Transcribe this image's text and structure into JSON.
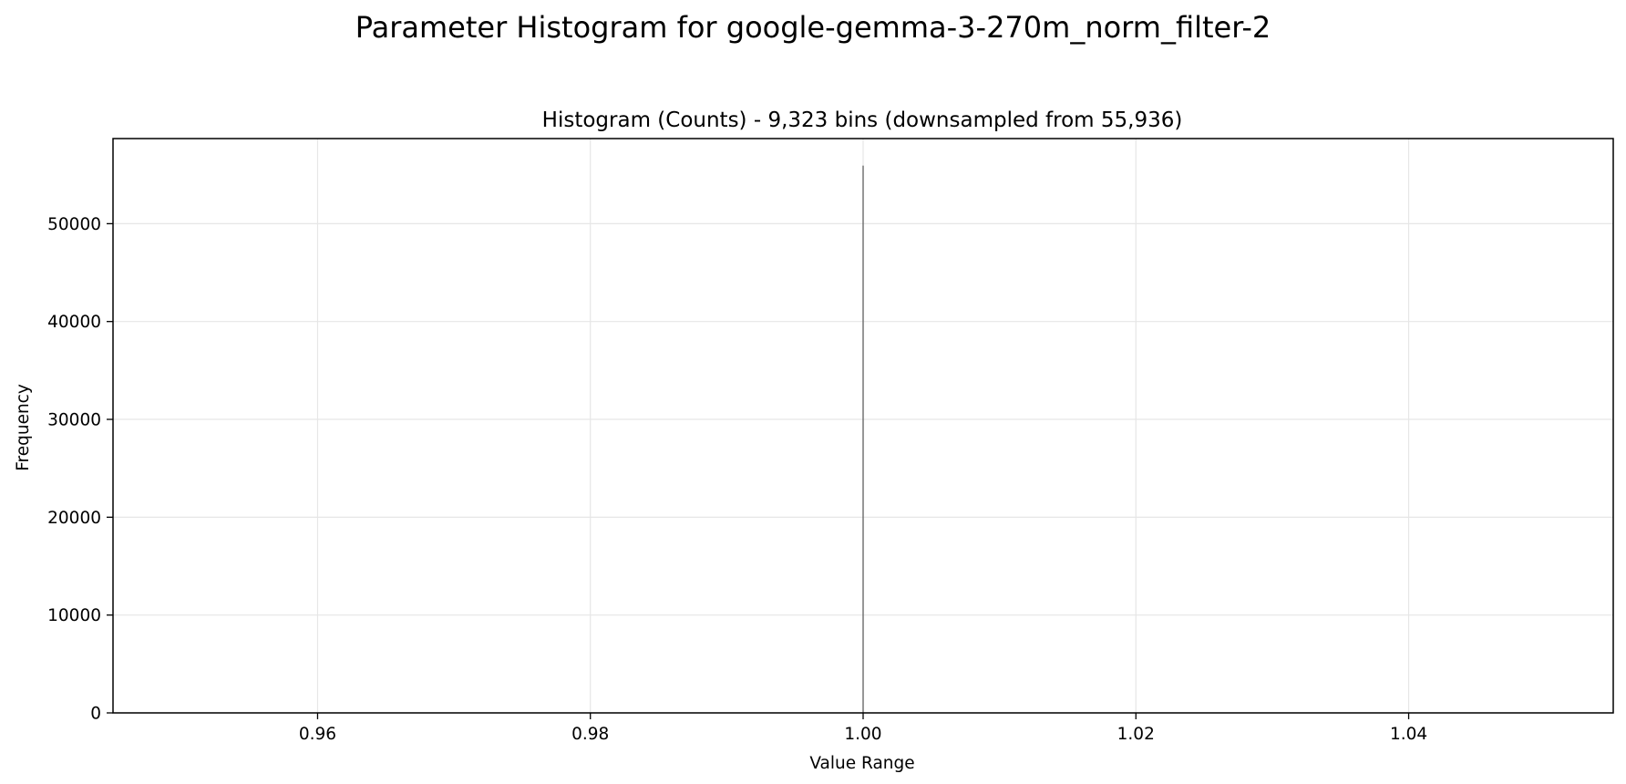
{
  "figure": {
    "suptitle": "Parameter Histogram for google-gemma-3-270m_norm_filter-2"
  },
  "chart_data": {
    "type": "bar",
    "title": "Histogram (Counts) - 9,323 bins (downsampled from 55,936)",
    "xlabel": "Value Range",
    "ylabel": "Frequency",
    "xlim": [
      0.945,
      1.055
    ],
    "ylim": [
      0,
      58700
    ],
    "xticks": [
      0.96,
      0.98,
      1.0,
      1.02,
      1.04
    ],
    "xtick_labels": [
      "0.96",
      "0.98",
      "1.00",
      "1.02",
      "1.04"
    ],
    "yticks": [
      0,
      10000,
      20000,
      30000,
      40000,
      50000
    ],
    "ytick_labels": [
      "0",
      "10000",
      "20000",
      "30000",
      "40000",
      "50000"
    ],
    "grid": true,
    "bars": [
      {
        "x": 1.0,
        "value": 55936
      }
    ],
    "colors": {
      "bar": "#555555",
      "grid": "#e6e6e6",
      "axes": "#000000"
    }
  }
}
